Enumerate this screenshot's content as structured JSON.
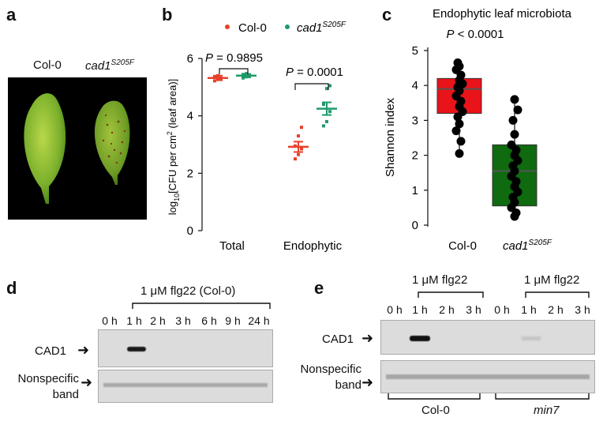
{
  "panels": {
    "a": {
      "letter": "a",
      "label_col0": "Col-0",
      "label_mutant_base": "cad1",
      "label_mutant_sup": "S205F"
    },
    "b": {
      "letter": "b",
      "legend_col0": "Col-0",
      "legend_mutant_base": "cad1",
      "legend_mutant_sup": "S205F",
      "p_total": "P = 0.9895",
      "p_endophytic": "P = 0.0001",
      "ylabel": "log10[CFU per cm2 (leaf area)]",
      "ylabel_parts": {
        "pre": "log",
        "sub": "10",
        "mid": "[CFU per cm",
        "sup": "2",
        "post": " (leaf area)]"
      },
      "colors": {
        "col0": "#e8402a",
        "mutant": "#1f9a6a"
      }
    },
    "c": {
      "letter": "c",
      "title": "Endophytic leaf microbiota",
      "p_value": "P < 0.0001",
      "ylabel": "Shannon index",
      "xlabel_col0": "Col-0",
      "xlabel_mutant_base": "cad1",
      "xlabel_mutant_sup": "S205F",
      "colors": {
        "col0": "#e8141a",
        "mutant": "#0f6a10"
      }
    },
    "d": {
      "letter": "d",
      "treatment": "1 μM flg22 (Col-0)",
      "lanes": [
        "0 h",
        "1 h",
        "2 h",
        "3 h",
        "6 h",
        "9 h",
        "24 h"
      ],
      "row_cad1": "CAD1",
      "row_nonspecific": "Nonspecific band"
    },
    "e": {
      "letter": "e",
      "treatment_1": "1 μM flg22",
      "treatment_2": "1 μM flg22",
      "lanes": [
        "0 h",
        "1 h",
        "2 h",
        "3 h",
        "0 h",
        "1 h",
        "2 h",
        "3 h"
      ],
      "row_cad1": "CAD1",
      "row_nonspecific": "Nonspecific band",
      "group_1": "Col-0",
      "group_2": "min7"
    }
  },
  "chart_data": [
    {
      "type": "scatter",
      "panel": "b",
      "categories": [
        "Total",
        "Endophytic"
      ],
      "ylim": [
        0,
        6
      ],
      "yticks": [
        0,
        2,
        4,
        6
      ],
      "series": [
        {
          "name": "Col-0",
          "means": [
            5.32,
            2.92
          ],
          "sem": [
            0.08,
            0.18
          ],
          "points": [
            [
              5.22,
              5.28,
              5.32,
              5.35,
              5.4,
              5.3
            ],
            [
              2.5,
              2.65,
              2.85,
              2.95,
              3.3,
              3.6
            ]
          ]
        },
        {
          "name": "cad1 S205F",
          "means": [
            5.4,
            4.25
          ],
          "sem": [
            0.06,
            0.22
          ],
          "points": [
            [
              5.32,
              5.36,
              5.4,
              5.44,
              5.47,
              5.38
            ],
            [
              3.65,
              3.8,
              4.15,
              4.4,
              4.95,
              5.05
            ]
          ]
        }
      ]
    },
    {
      "type": "box",
      "panel": "c",
      "categories": [
        "Col-0",
        "cad1 S205F"
      ],
      "ylim": [
        0,
        5
      ],
      "yticks": [
        0,
        1,
        2,
        3,
        4,
        5
      ],
      "boxes": [
        {
          "name": "Col-0",
          "min": 2.05,
          "q1": 3.2,
          "median": 3.9,
          "q3": 4.2,
          "max": 4.65,
          "points": [
            2.05,
            2.4,
            2.7,
            2.9,
            3.1,
            3.25,
            3.4,
            3.55,
            3.7,
            3.85,
            3.95,
            4.05,
            4.15,
            4.3,
            4.45,
            4.55,
            4.65
          ]
        },
        {
          "name": "cad1 S205F",
          "min": 0.25,
          "q1": 0.55,
          "median": 1.55,
          "q3": 2.3,
          "max": 3.6,
          "points": [
            0.25,
            0.35,
            0.5,
            0.65,
            0.8,
            0.95,
            1.1,
            1.25,
            1.4,
            1.55,
            1.7,
            1.85,
            2.0,
            2.15,
            2.3,
            2.6,
            3.0,
            3.3,
            3.6
          ]
        }
      ]
    }
  ]
}
